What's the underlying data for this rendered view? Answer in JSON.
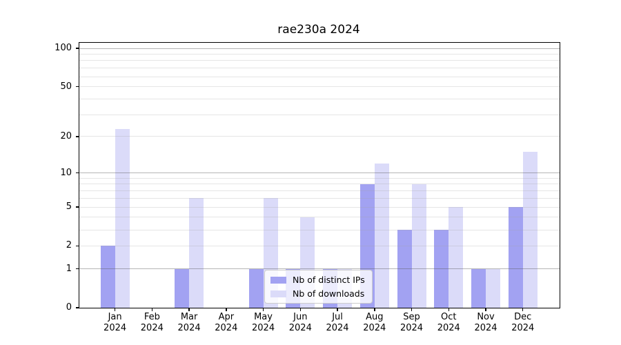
{
  "title": "rae230a 2024",
  "year": "2024",
  "chart_data": {
    "type": "bar",
    "title": "rae230a 2024",
    "categories": [
      "Jan",
      "Feb",
      "Mar",
      "Apr",
      "May",
      "Jun",
      "Jul",
      "Aug",
      "Sep",
      "Oct",
      "Nov",
      "Dec"
    ],
    "category_year": "2024",
    "series": [
      {
        "name": "Nb of distinct IPs",
        "color": "#a2a2f2",
        "values": [
          2,
          0,
          1,
          0,
          1,
          1,
          1,
          8,
          3,
          3,
          1,
          5
        ]
      },
      {
        "name": "Nb of downloads",
        "color": "#dbdbf9",
        "values": [
          23,
          0,
          6,
          0,
          6,
          4,
          1,
          12,
          8,
          5,
          1,
          15
        ]
      }
    ],
    "xlabel": "",
    "ylabel": "",
    "yscale": "log1p",
    "ylim": [
      0,
      100
    ],
    "ytick_labels": [
      100,
      50,
      20,
      10,
      5,
      2,
      1,
      0
    ],
    "grid_major": [
      1,
      10,
      100
    ],
    "grid_minor": [
      2,
      3,
      4,
      5,
      6,
      7,
      8,
      9,
      20,
      30,
      40,
      50,
      60,
      70,
      80,
      90
    ],
    "grid_major_color": "rgba(90,90,90,0.45)",
    "grid_minor_color": "rgba(160,160,160,0.28)",
    "legend_position": "lower-center"
  }
}
